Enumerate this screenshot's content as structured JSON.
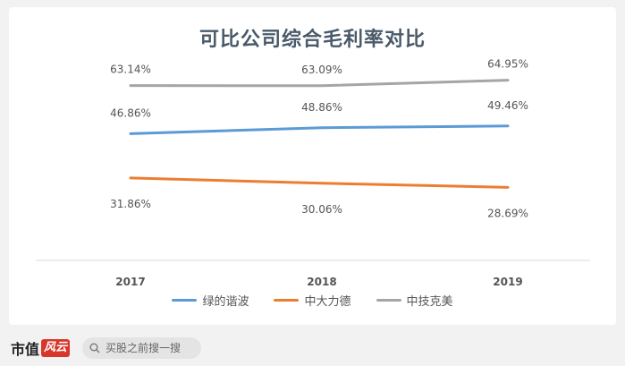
{
  "chart_data": {
    "type": "line",
    "title": "可比公司综合毛利率对比",
    "categories": [
      "2017",
      "2018",
      "2019"
    ],
    "series": [
      {
        "name": "绿的谐波",
        "values": [
          46.86,
          48.86,
          49.46
        ],
        "labels": [
          "46.86%",
          "48.86%",
          "49.46%"
        ],
        "color": "#5b9bd5"
      },
      {
        "name": "中大力德",
        "values": [
          31.86,
          30.06,
          28.69
        ],
        "labels": [
          "31.86%",
          "30.06%",
          "28.69%"
        ],
        "color": "#ed7d31"
      },
      {
        "name": "中技克美",
        "values": [
          63.14,
          63.09,
          64.95
        ],
        "labels": [
          "63.14%",
          "63.09%",
          "64.95%"
        ],
        "color": "#a5a5a5"
      }
    ],
    "grid": false,
    "legend_position": "bottom"
  },
  "brand": {
    "logo_text": "市值",
    "logo_box_text": "风云",
    "search_placeholder": "买股之前搜一搜",
    "search_icon": "search-icon"
  }
}
